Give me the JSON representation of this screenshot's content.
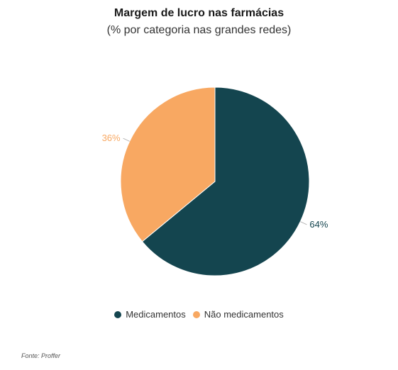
{
  "chart_data": {
    "type": "pie",
    "title": "Margem de lucro nas farmácias",
    "subtitle": "(% por categoria nas grandes redes)",
    "slices": [
      {
        "name": "Medicamentos",
        "value": 64,
        "label": "64%",
        "color": "#14454f"
      },
      {
        "name": "Não medicamentos",
        "value": 36,
        "label": "36%",
        "color": "#f8a862"
      }
    ],
    "legend_position": "bottom"
  },
  "source": "Fonte: Proffer"
}
